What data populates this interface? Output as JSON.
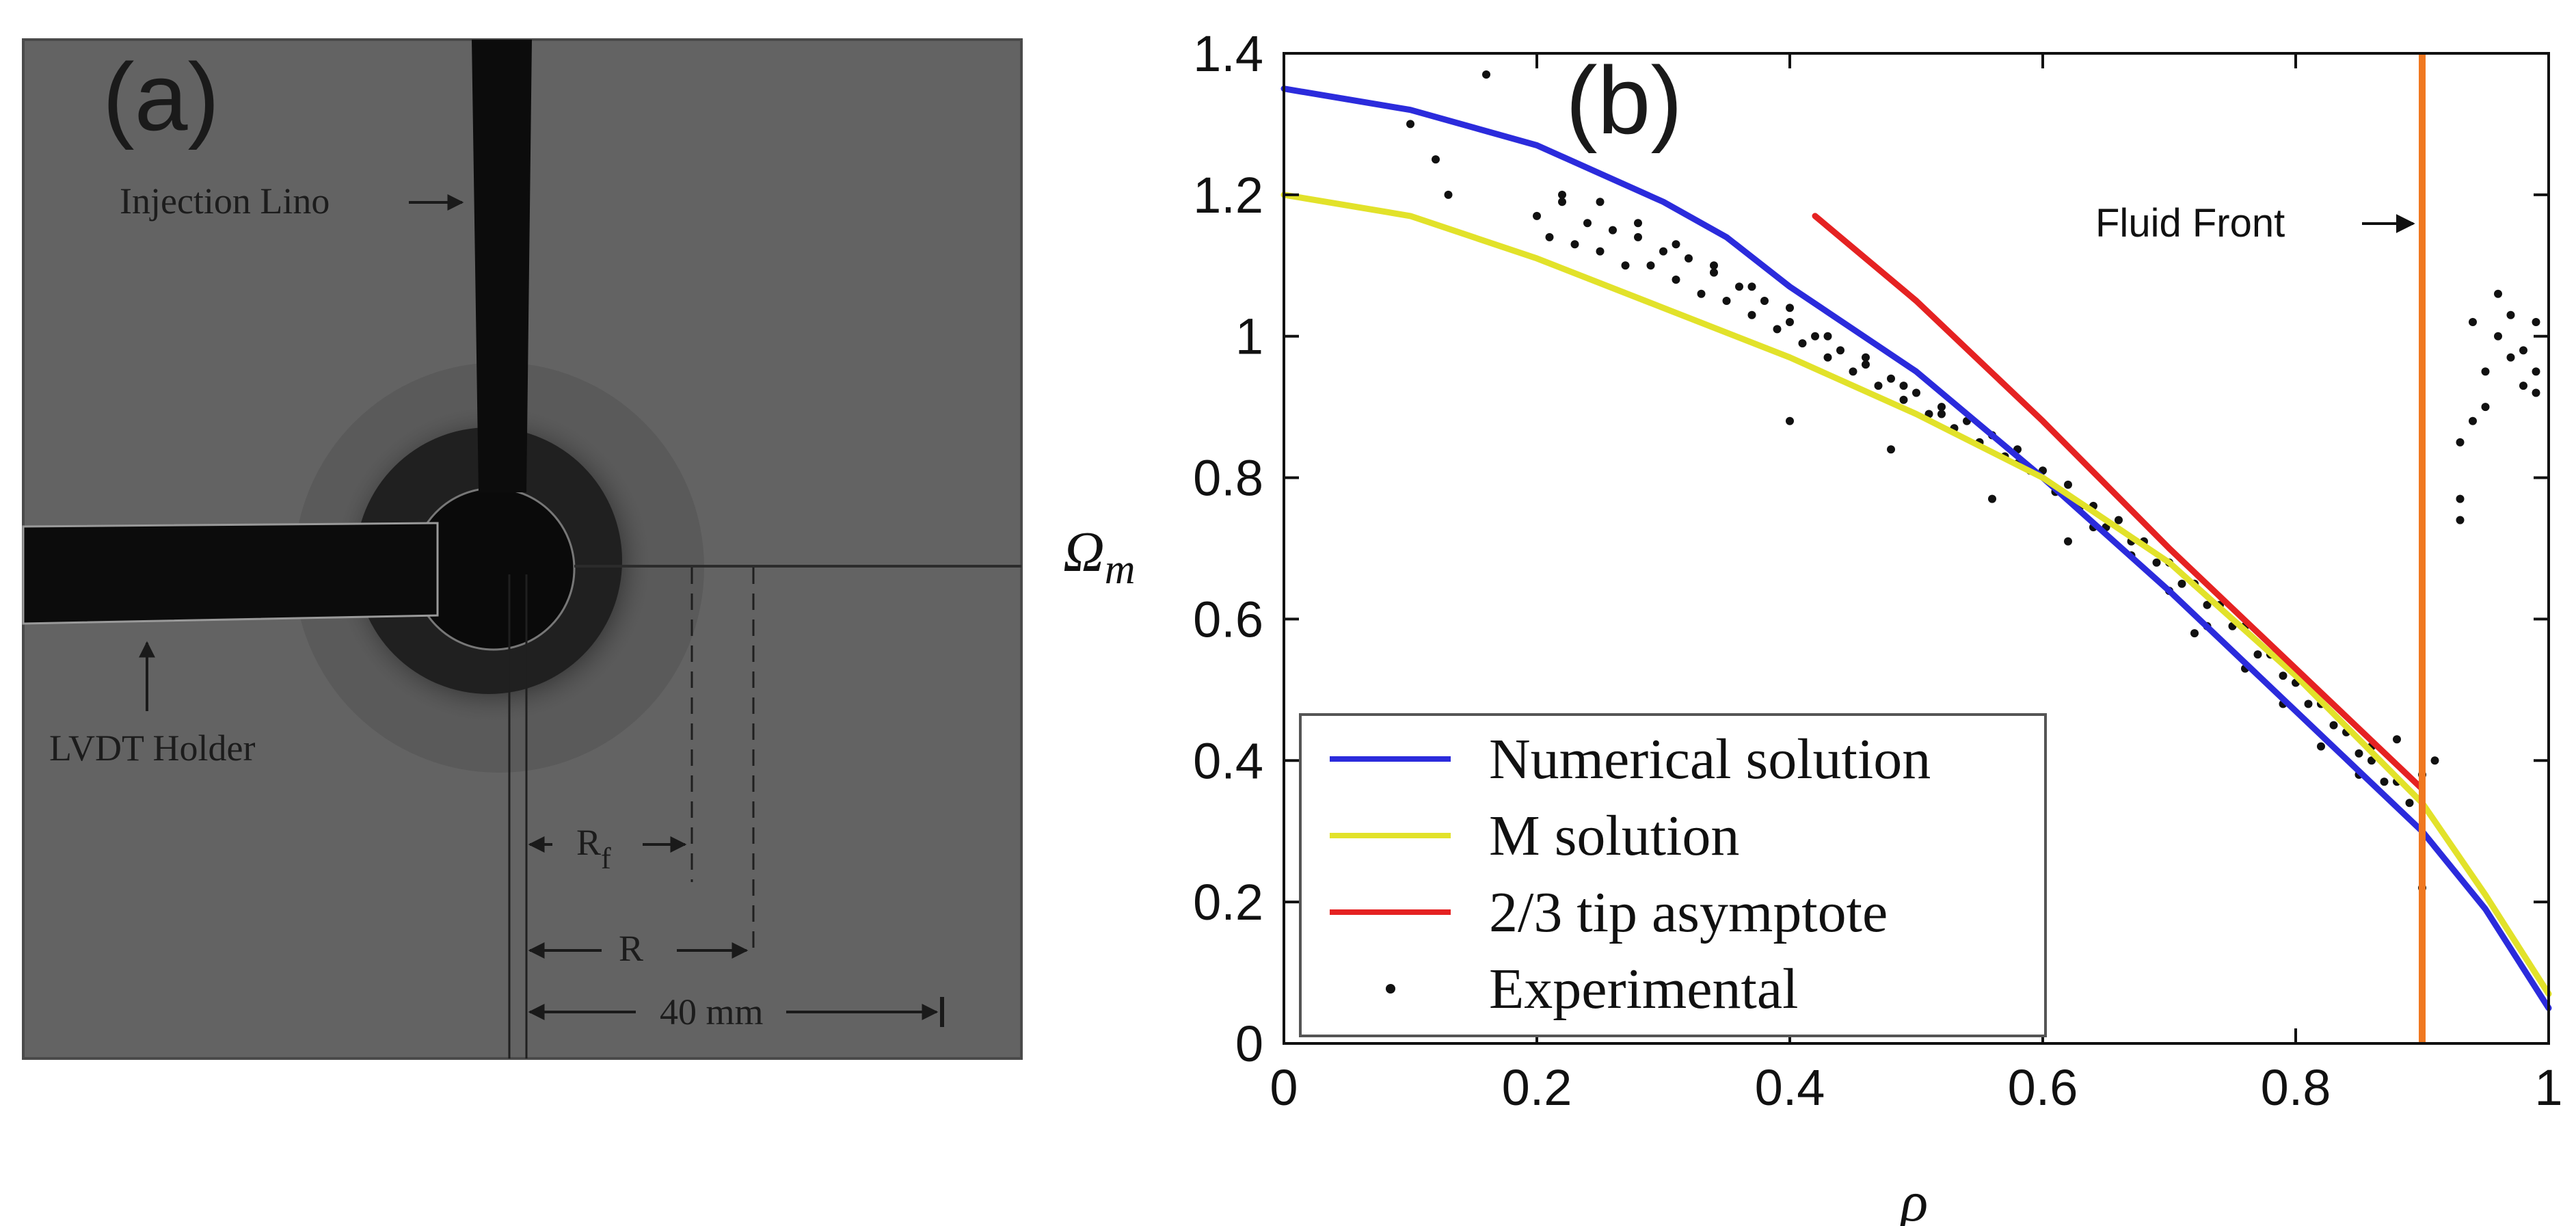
{
  "panel_a": {
    "label": "(a)",
    "injection_line_label": "Injection Lino",
    "lvdt_holder_label": "LVDT Holder",
    "rf_label": "R",
    "rf_subscript": "f",
    "r_label": "R",
    "scale_label": "40 mm"
  },
  "chart_data": {
    "type": "line",
    "panel_label": "(b)",
    "title": "",
    "xlabel": "ρ",
    "ylabel": "Ω",
    "ylabel_subscript": "m",
    "xlim": [
      0,
      1
    ],
    "ylim": [
      0,
      1.4
    ],
    "xticks": [
      0,
      0.2,
      0.4,
      0.6,
      0.8,
      1
    ],
    "xtick_labels": [
      "0",
      "0.2",
      "0.4",
      "0.6",
      "0.8",
      "1"
    ],
    "yticks": [
      0,
      0.2,
      0.4,
      0.6,
      0.8,
      1,
      1.2,
      1.4
    ],
    "ytick_labels": [
      "0",
      "0.2",
      "0.4",
      "0.6",
      "0.8",
      "1",
      "1.2",
      "1.4"
    ],
    "grid": false,
    "legend_position": "bottom-left",
    "series": [
      {
        "name": "Numerical solution",
        "color": "#2b2bdc",
        "x": [
          0,
          0.1,
          0.2,
          0.3,
          0.35,
          0.4,
          0.5,
          0.6,
          0.7,
          0.8,
          0.9,
          0.95,
          1.0
        ],
        "y": [
          1.35,
          1.32,
          1.27,
          1.19,
          1.14,
          1.07,
          0.95,
          0.8,
          0.64,
          0.47,
          0.3,
          0.19,
          0.05
        ]
      },
      {
        "name": "M solution",
        "color": "#e2e22a",
        "x": [
          0,
          0.1,
          0.2,
          0.3,
          0.4,
          0.5,
          0.6,
          0.7,
          0.8,
          0.9,
          0.95,
          1.0
        ],
        "y": [
          1.2,
          1.17,
          1.11,
          1.04,
          0.97,
          0.89,
          0.8,
          0.68,
          0.52,
          0.34,
          0.21,
          0.07
        ]
      },
      {
        "name": "2/3 tip asymptote",
        "color": "#e52222",
        "x": [
          0.42,
          0.5,
          0.6,
          0.7,
          0.8,
          0.9
        ],
        "y": [
          1.17,
          1.05,
          0.88,
          0.7,
          0.53,
          0.36
        ]
      }
    ],
    "experimental": {
      "name": "Experimental",
      "color": "#111111",
      "x": [
        0.1,
        0.12,
        0.13,
        0.16,
        0.2,
        0.21,
        0.22,
        0.23,
        0.24,
        0.25,
        0.26,
        0.27,
        0.28,
        0.29,
        0.3,
        0.31,
        0.32,
        0.33,
        0.34,
        0.35,
        0.36,
        0.37,
        0.38,
        0.39,
        0.4,
        0.41,
        0.42,
        0.43,
        0.44,
        0.45,
        0.46,
        0.47,
        0.48,
        0.49,
        0.5,
        0.51,
        0.52,
        0.53,
        0.54,
        0.55,
        0.56,
        0.57,
        0.58,
        0.59,
        0.6,
        0.61,
        0.62,
        0.63,
        0.64,
        0.65,
        0.66,
        0.67,
        0.68,
        0.69,
        0.7,
        0.71,
        0.72,
        0.73,
        0.74,
        0.75,
        0.76,
        0.77,
        0.78,
        0.79,
        0.8,
        0.81,
        0.82,
        0.83,
        0.84,
        0.85,
        0.86,
        0.87,
        0.88,
        0.89,
        0.9,
        0.91,
        0.22,
        0.25,
        0.28,
        0.31,
        0.34,
        0.37,
        0.4,
        0.43,
        0.46,
        0.49,
        0.52,
        0.55,
        0.58,
        0.61,
        0.64,
        0.67,
        0.7,
        0.73,
        0.76,
        0.79,
        0.82,
        0.85,
        0.88,
        0.4,
        0.48,
        0.56,
        0.62,
        0.72,
        0.78,
        0.86,
        0.9,
        0.93,
        0.94,
        0.95,
        0.96,
        0.97,
        0.98,
        0.99,
        0.94,
        0.96,
        0.98,
        0.93,
        0.95,
        0.97,
        0.99,
        0.93,
        0.99
      ],
      "y": [
        1.3,
        1.25,
        1.2,
        1.37,
        1.17,
        1.14,
        1.19,
        1.13,
        1.16,
        1.12,
        1.15,
        1.1,
        1.14,
        1.1,
        1.12,
        1.08,
        1.11,
        1.06,
        1.09,
        1.05,
        1.07,
        1.03,
        1.05,
        1.01,
        1.02,
        0.99,
        1.0,
        0.97,
        0.98,
        0.95,
        0.96,
        0.93,
        0.94,
        0.91,
        0.92,
        0.89,
        0.9,
        0.87,
        0.88,
        0.85,
        0.86,
        0.83,
        0.84,
        0.81,
        0.81,
        0.78,
        0.79,
        0.76,
        0.76,
        0.73,
        0.74,
        0.71,
        0.71,
        0.68,
        0.68,
        0.65,
        0.65,
        0.62,
        0.62,
        0.59,
        0.59,
        0.55,
        0.55,
        0.52,
        0.51,
        0.48,
        0.48,
        0.45,
        0.44,
        0.41,
        0.4,
        0.37,
        0.37,
        0.34,
        0.38,
        0.4,
        1.2,
        1.19,
        1.16,
        1.13,
        1.1,
        1.07,
        1.04,
        1.0,
        0.97,
        0.93,
        0.89,
        0.85,
        0.82,
        0.78,
        0.73,
        0.69,
        0.64,
        0.59,
        0.53,
        0.48,
        0.42,
        0.38,
        0.43,
        0.88,
        0.84,
        0.77,
        0.71,
        0.58,
        0.55,
        0.42,
        0.22,
        0.74,
        0.88,
        0.95,
        1.0,
        0.97,
        0.93,
        0.92,
        1.02,
        1.06,
        0.98,
        0.77,
        0.9,
        1.03,
        0.95,
        0.85,
        1.02
      ]
    },
    "annotation": {
      "text": "Fluid Front",
      "x": 0.9,
      "color": "#f07820"
    }
  }
}
